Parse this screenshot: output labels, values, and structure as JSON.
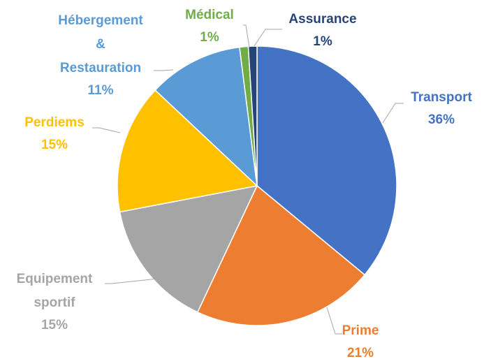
{
  "chart_data": {
    "type": "pie",
    "categories": [
      "Transport",
      "Prime",
      "Equipement sportif",
      "Perdiems",
      "Hébergement & Restauration",
      "Médical",
      "Assurance"
    ],
    "values": [
      36,
      21,
      15,
      15,
      11,
      1,
      1
    ],
    "value_labels": [
      "36%",
      "21%",
      "15%",
      "15%",
      "11%",
      "1%",
      "1%"
    ],
    "colors": [
      "#4472c4",
      "#ed7d31",
      "#a5a5a5",
      "#ffc000",
      "#5b9bd5",
      "#70ad47",
      "#264478"
    ]
  }
}
